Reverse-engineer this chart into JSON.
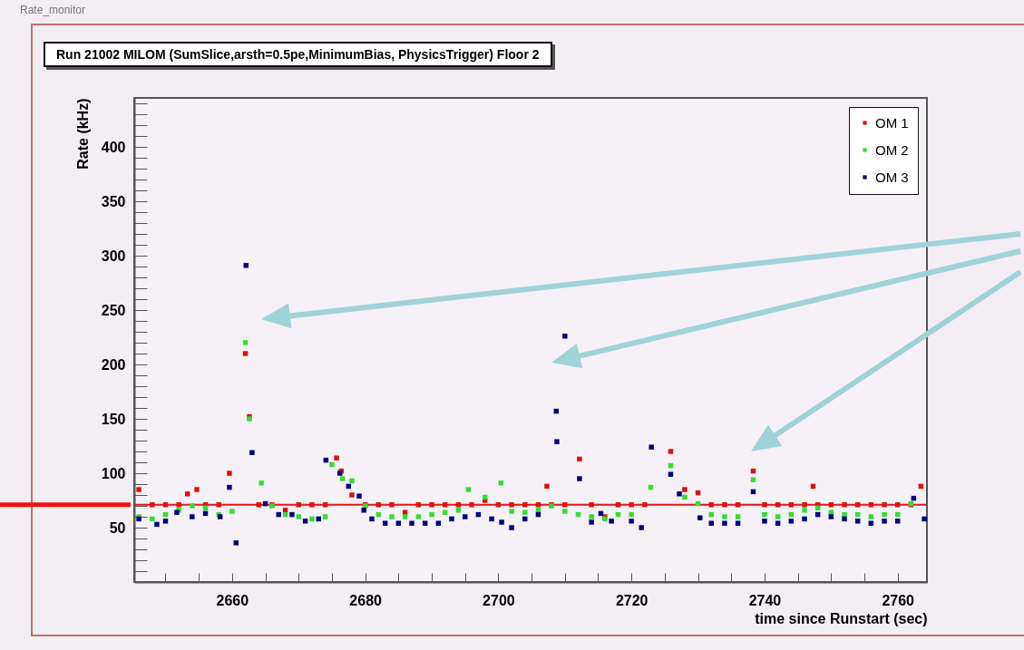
{
  "chart_data": {
    "type": "scatter",
    "title": "Run 21002 MILOM (SumSlice,arsth=0.5pe,MinimumBias, PhysicsTrigger) Floor 2",
    "xlabel": "time since Runstart (sec)",
    "ylabel": "Rate (kHz)",
    "annotations": [
      "Rate_monitor"
    ],
    "xlim": [
      2645.3,
      2764.4
    ],
    "ylim": [
      0,
      445
    ],
    "xticks": [
      {
        "value": 2650,
        "label": null
      },
      {
        "value": 2655,
        "label": null
      },
      2660,
      {
        "value": 2665,
        "label": null
      },
      {
        "value": 2670,
        "label": null
      },
      {
        "value": 2675,
        "label": null
      },
      2680,
      {
        "value": 2685,
        "label": null
      },
      {
        "value": 2690,
        "label": null
      },
      {
        "value": 2695,
        "label": null
      },
      2700,
      {
        "value": 2705,
        "label": null
      },
      {
        "value": 2710,
        "label": null
      },
      {
        "value": 2715,
        "label": null
      },
      2720,
      {
        "value": 2725,
        "label": null
      },
      {
        "value": 2730,
        "label": null
      },
      {
        "value": 2735,
        "label": null
      },
      2740,
      {
        "value": 2745,
        "label": null
      },
      {
        "value": 2750,
        "label": null
      },
      {
        "value": 2755,
        "label": null
      },
      2760
    ],
    "yticks": [
      {
        "value": 10,
        "label": null
      },
      {
        "value": 20,
        "label": null
      },
      {
        "value": 30,
        "label": null
      },
      {
        "value": 40,
        "label": null
      },
      50,
      {
        "value": 60,
        "label": null
      },
      {
        "value": 70,
        "label": null
      },
      {
        "value": 80,
        "label": null
      },
      {
        "value": 90,
        "label": null
      },
      100,
      {
        "value": 110,
        "label": null
      },
      {
        "value": 120,
        "label": null
      },
      {
        "value": 130,
        "label": null
      },
      {
        "value": 140,
        "label": null
      },
      150,
      {
        "value": 160,
        "label": null
      },
      {
        "value": 170,
        "label": null
      },
      {
        "value": 180,
        "label": null
      },
      {
        "value": 190,
        "label": null
      },
      200,
      {
        "value": 210,
        "label": null
      },
      {
        "value": 220,
        "label": null
      },
      {
        "value": 230,
        "label": null
      },
      {
        "value": 240,
        "label": null
      },
      250,
      {
        "value": 260,
        "label": null
      },
      {
        "value": 270,
        "label": null
      },
      {
        "value": 280,
        "label": null
      },
      {
        "value": 290,
        "label": null
      },
      300,
      {
        "value": 310,
        "label": null
      },
      {
        "value": 320,
        "label": null
      },
      {
        "value": 330,
        "label": null
      },
      {
        "value": 340,
        "label": null
      },
      350,
      {
        "value": 360,
        "label": null
      },
      {
        "value": 370,
        "label": null
      },
      {
        "value": 380,
        "label": null
      },
      {
        "value": 390,
        "label": null
      },
      400,
      {
        "value": 410,
        "label": null
      },
      {
        "value": 420,
        "label": null
      },
      {
        "value": 430,
        "label": null
      },
      {
        "value": 440,
        "label": null
      }
    ],
    "legend": "top right",
    "marker": "square",
    "ref_lines": [
      {
        "axis": "y",
        "value": 71,
        "color": "#ee1111"
      }
    ],
    "series": [
      {
        "name": "OM 1",
        "color": "#dd1111",
        "x": [
          2646,
          2648,
          2650,
          2652,
          2653.3,
          2654.7,
          2656,
          2658,
          2659.6,
          2662,
          2662.6,
          2664,
          2666,
          2668,
          2670,
          2672,
          2674,
          2675.7,
          2676.4,
          2678,
          2680,
          2682,
          2684,
          2686,
          2688,
          2690,
          2692,
          2694,
          2696,
          2698,
          2700,
          2702,
          2704,
          2706,
          2707.3,
          2708,
          2710,
          2712.2,
          2714,
          2716,
          2718,
          2720,
          2722,
          2725.9,
          2728,
          2730,
          2732,
          2734,
          2736,
          2738.3,
          2740,
          2742,
          2744,
          2746,
          2747.3,
          2748,
          2750,
          2752,
          2754,
          2756,
          2758,
          2760,
          2762,
          2763.5
        ],
        "values": [
          85,
          71,
          71,
          71,
          81,
          85,
          71,
          71,
          100,
          210,
          152,
          71,
          71,
          66,
          71,
          71,
          71,
          114,
          102,
          80,
          71,
          71,
          71,
          64,
          71,
          71,
          71,
          71,
          71,
          75,
          71,
          71,
          71,
          71,
          88,
          71,
          71,
          113,
          71,
          60,
          71,
          71,
          71,
          120,
          85,
          82,
          71,
          71,
          71,
          102,
          71,
          71,
          71,
          71,
          88,
          71,
          71,
          71,
          71,
          71,
          71,
          71,
          71,
          88
        ]
      },
      {
        "name": "OM 2",
        "color": "#33dd33",
        "x": [
          2646,
          2648,
          2650,
          2652,
          2654,
          2656,
          2658,
          2660,
          2662,
          2662.6,
          2664.4,
          2666,
          2668,
          2670,
          2672,
          2674,
          2675,
          2676.6,
          2678,
          2680,
          2682,
          2684,
          2686,
          2688,
          2690,
          2692,
          2694,
          2695.5,
          2698,
          2700.4,
          2702,
          2704,
          2706,
          2708,
          2710,
          2712,
          2714,
          2716,
          2718,
          2720,
          2722.9,
          2725.9,
          2728,
          2730,
          2732,
          2734,
          2736,
          2738.3,
          2740,
          2742,
          2744,
          2746,
          2748,
          2750,
          2752,
          2754,
          2756,
          2758,
          2760,
          2762
        ],
        "values": [
          60,
          58,
          62,
          66,
          70,
          68,
          62,
          65,
          220,
          150,
          91,
          70,
          62,
          60,
          58,
          60,
          108,
          95,
          93,
          70,
          62,
          60,
          60,
          60,
          62,
          64,
          66,
          85,
          78,
          91,
          65,
          64,
          66,
          70,
          65,
          62,
          60,
          58,
          62,
          62,
          87,
          107,
          78,
          72,
          62,
          60,
          60,
          94,
          62,
          60,
          62,
          66,
          68,
          64,
          62,
          62,
          60,
          62,
          62,
          72
        ]
      },
      {
        "name": "OM 3",
        "color": "#000080",
        "x": [
          2646,
          2648.7,
          2650,
          2651.7,
          2654,
          2656,
          2658.2,
          2659.6,
          2660.6,
          2662.1,
          2663,
          2665,
          2667,
          2669,
          2671,
          2673,
          2674.1,
          2676.2,
          2677.5,
          2679.1,
          2679.8,
          2681,
          2683,
          2685,
          2687,
          2689,
          2691,
          2693,
          2695,
          2697,
          2699,
          2700.5,
          2702,
          2704,
          2706,
          2708.7,
          2708.8,
          2710,
          2712.2,
          2714,
          2715.4,
          2717,
          2720,
          2721.5,
          2723,
          2725.9,
          2727.2,
          2730.3,
          2732,
          2734,
          2736,
          2738.3,
          2740,
          2742,
          2744,
          2746,
          2748,
          2750,
          2752,
          2754,
          2756,
          2758,
          2760,
          2762.4,
          2764
        ],
        "values": [
          58,
          53,
          56,
          64,
          60,
          63,
          60,
          87,
          36,
          291,
          119,
          72,
          62,
          62,
          56,
          58,
          112,
          100,
          88,
          79,
          66,
          58,
          54,
          54,
          54,
          54,
          54,
          58,
          60,
          62,
          58,
          55,
          50,
          58,
          62,
          157,
          129,
          226,
          95,
          55,
          63,
          56,
          56,
          50,
          124,
          99,
          81,
          59,
          54,
          54,
          54,
          83,
          56,
          54,
          56,
          58,
          62,
          60,
          58,
          56,
          54,
          56,
          56,
          77,
          58
        ]
      }
    ]
  }
}
